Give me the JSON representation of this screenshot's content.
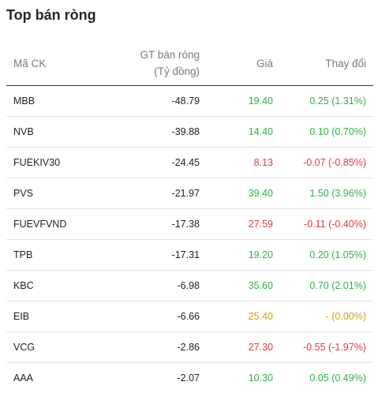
{
  "header": {
    "title": "Top bán ròng"
  },
  "table": {
    "columns": [
      {
        "label": "Mã CK"
      },
      {
        "line1": "GT bán ròng",
        "line2": "(Tỷ đồng)"
      },
      {
        "label": "Giá"
      },
      {
        "label": "Thay đổi"
      }
    ],
    "rows": [
      {
        "code": "MBB",
        "value": "-48.79",
        "price": "19.40",
        "change": "0.25 (1.31%)",
        "status": "up"
      },
      {
        "code": "NVB",
        "value": "-39.88",
        "price": "14.40",
        "change": "0.10 (0.70%)",
        "status": "up"
      },
      {
        "code": "FUEKIV30",
        "value": "-24.45",
        "price": "8.13",
        "change": "-0.07 (-0.85%)",
        "status": "down"
      },
      {
        "code": "PVS",
        "value": "-21.97",
        "price": "39.40",
        "change": "1.50 (3.96%)",
        "status": "up"
      },
      {
        "code": "FUEVFVND",
        "value": "-17.38",
        "price": "27.59",
        "change": "-0.11 (-0.40%)",
        "status": "down"
      },
      {
        "code": "TPB",
        "value": "-17.31",
        "price": "19.20",
        "change": "0.20 (1.05%)",
        "status": "up"
      },
      {
        "code": "KBC",
        "value": "-6.98",
        "price": "35.60",
        "change": "0.70 (2.01%)",
        "status": "up"
      },
      {
        "code": "EIB",
        "value": "-6.66",
        "price": "25.40",
        "change": "- (0.00%)",
        "status": "ref"
      },
      {
        "code": "VCG",
        "value": "-2.86",
        "price": "27.30",
        "change": "-0.55 (-1.97%)",
        "status": "down"
      },
      {
        "code": "AAA",
        "value": "-2.07",
        "price": "10.30",
        "change": "0.05 (0.49%)",
        "status": "up"
      }
    ]
  },
  "colors": {
    "up": "#2fb344",
    "down": "#e53935",
    "ref": "#d4a106"
  }
}
